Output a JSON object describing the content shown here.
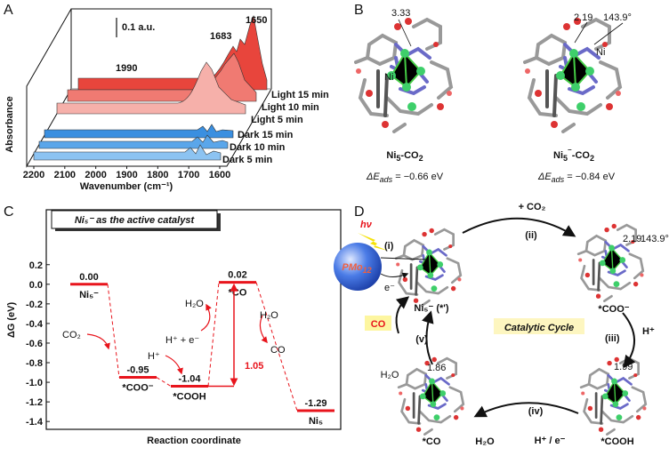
{
  "panel_labels": [
    "A",
    "B",
    "C",
    "D"
  ],
  "panel_a": {
    "ylabel": "Absorbance",
    "xlabel": "Wavenumber (cm⁻¹)",
    "scale_bar": "0.1 a.u.",
    "peaks": [
      "1990",
      "1683",
      "1650"
    ],
    "xlim": [
      2200,
      1600
    ],
    "xticks": [
      2200,
      2100,
      2000,
      1900,
      1800,
      1700,
      1600
    ],
    "traces": [
      "Light 15 min",
      "Light 10 min",
      "Light 5 min",
      "Dark 15 min",
      "Dark 10 min",
      "Dark 5 min"
    ]
  },
  "panel_b": {
    "left": {
      "distance": "3.33",
      "atom": "Ni",
      "name": [
        "Ni",
        "5",
        "-CO",
        "2"
      ],
      "energy": [
        "ΔE",
        "ads",
        " = −0.66 eV"
      ]
    },
    "right": {
      "distance": "2.19",
      "angle": "143.9°",
      "atom": "Ni",
      "name": [
        "Ni",
        "5",
        "⁻",
        "-CO",
        "2"
      ],
      "energy": [
        "ΔE",
        "ads",
        " = −0.84 eV"
      ]
    }
  },
  "chart_data": {
    "type": "energy_levels",
    "title": "Ni₅⁻ as the active catalyst",
    "ylabel": "ΔG (eV)",
    "xlabel": "Reaction coordinate",
    "categories": [
      "Ni₅⁻",
      "*COO⁻",
      "*COOH",
      "*CO",
      "Ni₅"
    ],
    "values": [
      0.0,
      -0.95,
      -1.04,
      0.02,
      -1.29
    ],
    "value_labels": [
      "0.00",
      "-0.95",
      "-1.04",
      "0.02",
      "-1.29"
    ],
    "color": "#e8141c",
    "ylim": [
      -1.48,
      0.76
    ],
    "yticks": [
      0.2,
      {
        "value": 0,
        "label": "0.0"
      },
      -0.2,
      -0.4,
      -0.6,
      -0.8,
      {
        "value": -1,
        "label": "-1.0"
      },
      -1.2,
      -1.4
    ],
    "annotations": [
      "CO₂",
      "H⁺",
      "H₂O",
      "H⁺ + e⁻",
      "H₂O",
      "CO",
      "1.05"
    ]
  },
  "panel_d": {
    "light": "hν",
    "cocatalyst": [
      "PMo",
      "12"
    ],
    "electron": "e⁻",
    "center": "Catalytic Cycle",
    "steps": [
      "(i)",
      "(ii)",
      "(iii)",
      "(iv)",
      "(v)"
    ],
    "reagents": [
      "+ CO₂",
      "H⁺",
      "H⁺ / e⁻",
      "H₂O",
      "H₂O",
      "CO"
    ],
    "species": [
      "Ni₅⁻ (*')",
      "*COO⁻",
      "*COOH",
      "*CO"
    ],
    "geometry": [
      "2.19",
      "143.9°",
      "1.99",
      "1.86"
    ]
  }
}
